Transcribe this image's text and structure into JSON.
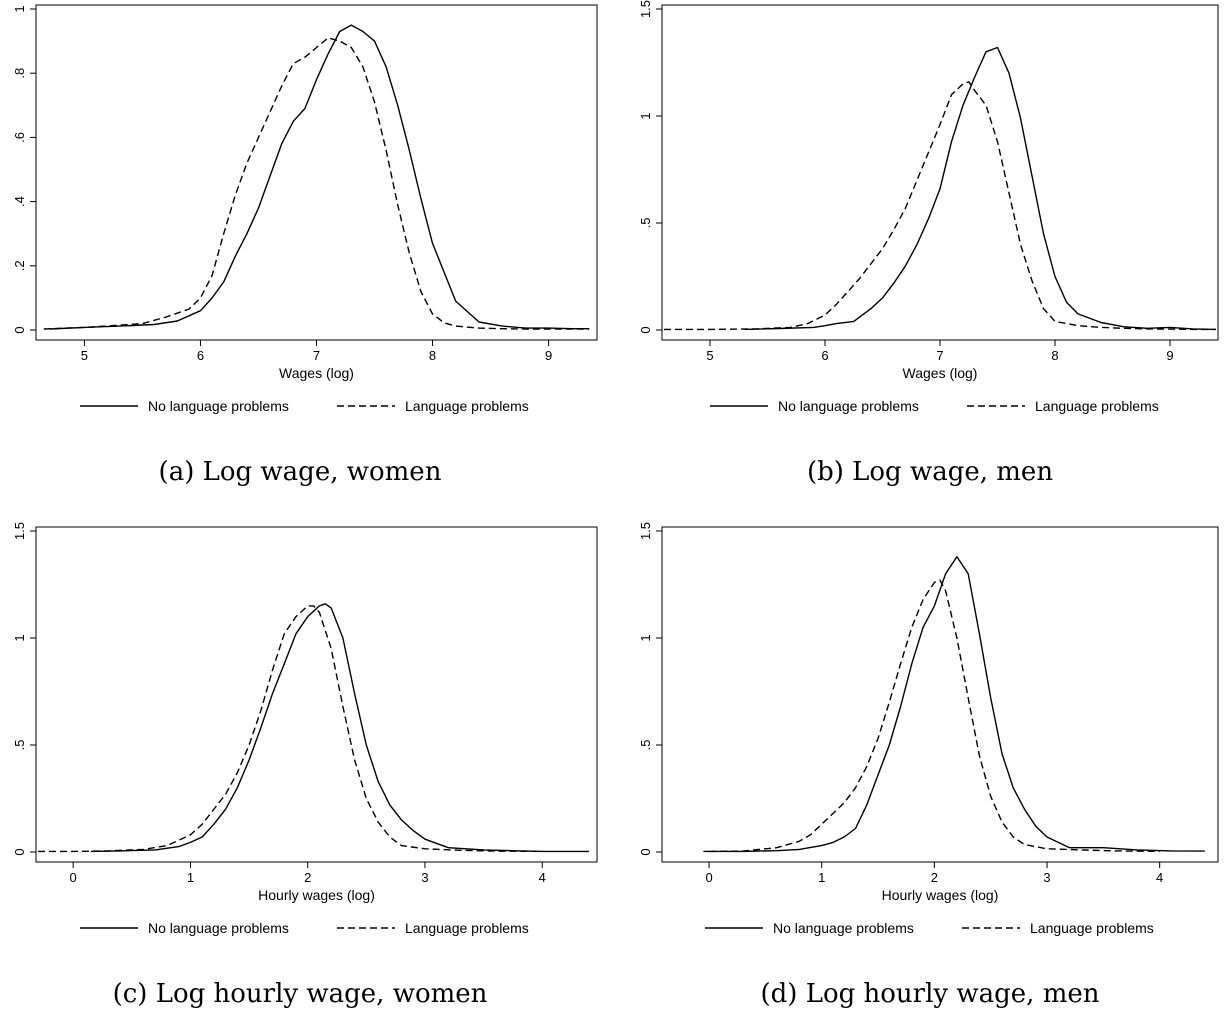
{
  "colors": {
    "line": "#000000",
    "background": "#ffffff"
  },
  "chart_data": [
    {
      "type": "line",
      "caption": "(a) Log wage, women",
      "xlabel": "Wages (log)",
      "ylabel": "",
      "xlim": [
        4.6,
        9.4
      ],
      "ylim": [
        0,
        1.0
      ],
      "xticks": [
        5,
        6,
        7,
        8,
        9
      ],
      "xtick_labels": [
        "5",
        "6",
        "7",
        "8",
        "9"
      ],
      "yticks": [
        0,
        0.2,
        0.4,
        0.6,
        0.8,
        1.0
      ],
      "ytick_labels": [
        "0",
        ".2",
        ".4",
        ".6",
        ".8",
        "1"
      ],
      "legend_position": "bottom",
      "series": [
        {
          "name": "No language problems",
          "style": "solid",
          "x": [
            4.7,
            5.0,
            5.3,
            5.6,
            5.8,
            6.0,
            6.1,
            6.2,
            6.3,
            6.4,
            6.5,
            6.6,
            6.7,
            6.8,
            6.9,
            7.0,
            7.1,
            7.2,
            7.3,
            7.4,
            7.5,
            7.6,
            7.7,
            7.8,
            7.9,
            8.0,
            8.2,
            8.4,
            8.6,
            8.8,
            9.0,
            9.2,
            9.35
          ],
          "y": [
            0.003,
            0.008,
            0.012,
            0.017,
            0.028,
            0.06,
            0.1,
            0.15,
            0.23,
            0.3,
            0.38,
            0.48,
            0.58,
            0.65,
            0.69,
            0.78,
            0.86,
            0.93,
            0.95,
            0.93,
            0.9,
            0.82,
            0.7,
            0.56,
            0.41,
            0.27,
            0.09,
            0.025,
            0.012,
            0.006,
            0.006,
            0.004,
            0.004
          ]
        },
        {
          "name": "Language problems",
          "style": "dashed",
          "x": [
            4.65,
            5.0,
            5.3,
            5.5,
            5.7,
            5.9,
            6.0,
            6.1,
            6.2,
            6.3,
            6.4,
            6.5,
            6.6,
            6.7,
            6.8,
            6.9,
            7.0,
            7.1,
            7.2,
            7.3,
            7.4,
            7.5,
            7.6,
            7.7,
            7.8,
            7.9,
            8.0,
            8.1,
            8.2,
            8.4,
            8.6,
            8.8,
            9.0,
            9.2,
            9.35
          ],
          "y": [
            0.003,
            0.008,
            0.015,
            0.02,
            0.04,
            0.065,
            0.1,
            0.17,
            0.3,
            0.42,
            0.52,
            0.6,
            0.68,
            0.76,
            0.83,
            0.85,
            0.88,
            0.91,
            0.9,
            0.88,
            0.82,
            0.71,
            0.56,
            0.39,
            0.24,
            0.12,
            0.05,
            0.022,
            0.012,
            0.006,
            0.004,
            0.003,
            0.003,
            0.003,
            0.003
          ]
        }
      ]
    },
    {
      "type": "line",
      "caption": "(b) Log wage, men",
      "xlabel": "Wages (log)",
      "ylabel": "",
      "xlim": [
        4.6,
        9.4
      ],
      "ylim": [
        0,
        1.5
      ],
      "xticks": [
        5,
        6,
        7,
        8,
        9
      ],
      "xtick_labels": [
        "5",
        "6",
        "7",
        "8",
        "9"
      ],
      "yticks": [
        0,
        0.5,
        1.0,
        1.5
      ],
      "ytick_labels": [
        "0",
        ".5",
        "1",
        "1.5"
      ],
      "legend_position": "bottom",
      "series": [
        {
          "name": "No language problems",
          "style": "solid",
          "x": [
            5.3,
            5.6,
            5.9,
            6.0,
            6.1,
            6.25,
            6.4,
            6.5,
            6.6,
            6.7,
            6.8,
            6.9,
            7.0,
            7.1,
            7.2,
            7.3,
            7.4,
            7.5,
            7.6,
            7.7,
            7.8,
            7.9,
            8.0,
            8.1,
            8.2,
            8.4,
            8.6,
            8.8,
            9.0,
            9.2,
            9.4
          ],
          "y": [
            0.003,
            0.007,
            0.012,
            0.02,
            0.03,
            0.04,
            0.1,
            0.15,
            0.22,
            0.3,
            0.4,
            0.52,
            0.66,
            0.88,
            1.05,
            1.18,
            1.3,
            1.32,
            1.2,
            0.99,
            0.72,
            0.45,
            0.25,
            0.13,
            0.075,
            0.035,
            0.015,
            0.008,
            0.012,
            0.005,
            0.003
          ]
        },
        {
          "name": "Language problems",
          "style": "dashed",
          "x": [
            4.6,
            5.0,
            5.4,
            5.7,
            5.85,
            6.0,
            6.1,
            6.2,
            6.3,
            6.4,
            6.5,
            6.6,
            6.7,
            6.8,
            6.9,
            7.0,
            7.1,
            7.2,
            7.25,
            7.3,
            7.4,
            7.5,
            7.6,
            7.7,
            7.8,
            7.9,
            8.0,
            8.2,
            8.4,
            8.6,
            8.8,
            9.0,
            9.2,
            9.4
          ],
          "y": [
            0.003,
            0.003,
            0.005,
            0.012,
            0.03,
            0.07,
            0.12,
            0.18,
            0.24,
            0.31,
            0.38,
            0.47,
            0.57,
            0.7,
            0.83,
            0.96,
            1.1,
            1.15,
            1.16,
            1.12,
            1.05,
            0.88,
            0.64,
            0.4,
            0.23,
            0.1,
            0.04,
            0.02,
            0.012,
            0.008,
            0.005,
            0.004,
            0.003,
            0.003
          ]
        }
      ]
    },
    {
      "type": "line",
      "caption": "(c) Log hourly wage, women",
      "xlabel": "Hourly wages (log)",
      "ylabel": "",
      "xlim": [
        -0.3,
        4.45
      ],
      "ylim": [
        0,
        1.5
      ],
      "xticks": [
        0,
        1,
        2,
        3,
        4
      ],
      "xtick_labels": [
        "0",
        "1",
        "2",
        "3",
        "4"
      ],
      "yticks": [
        0,
        0.5,
        1.0,
        1.5
      ],
      "ytick_labels": [
        "0",
        ".5",
        "1",
        "1.5"
      ],
      "legend_position": "bottom",
      "series": [
        {
          "name": "No language problems",
          "style": "solid",
          "x": [
            0.15,
            0.4,
            0.7,
            0.9,
            1.0,
            1.1,
            1.2,
            1.3,
            1.4,
            1.5,
            1.6,
            1.7,
            1.8,
            1.9,
            2.0,
            2.1,
            2.15,
            2.2,
            2.3,
            2.4,
            2.5,
            2.6,
            2.7,
            2.8,
            2.9,
            3.0,
            3.2,
            3.5,
            4.0,
            4.4
          ],
          "y": [
            0.003,
            0.005,
            0.01,
            0.025,
            0.045,
            0.07,
            0.13,
            0.2,
            0.3,
            0.43,
            0.58,
            0.74,
            0.88,
            1.02,
            1.1,
            1.15,
            1.16,
            1.14,
            1.0,
            0.74,
            0.5,
            0.33,
            0.22,
            0.15,
            0.1,
            0.06,
            0.02,
            0.01,
            0.003,
            0.003
          ]
        },
        {
          "name": "Language problems",
          "style": "dashed",
          "x": [
            -0.3,
            0.0,
            0.3,
            0.6,
            0.8,
            1.0,
            1.1,
            1.2,
            1.3,
            1.4,
            1.5,
            1.6,
            1.7,
            1.8,
            1.9,
            2.0,
            2.05,
            2.1,
            2.2,
            2.3,
            2.4,
            2.5,
            2.6,
            2.7,
            2.8,
            3.0,
            3.3,
            3.6,
            4.0
          ],
          "y": [
            0.003,
            0.003,
            0.005,
            0.012,
            0.03,
            0.08,
            0.13,
            0.2,
            0.27,
            0.37,
            0.5,
            0.66,
            0.85,
            1.02,
            1.1,
            1.15,
            1.15,
            1.12,
            0.95,
            0.68,
            0.43,
            0.25,
            0.14,
            0.07,
            0.03,
            0.015,
            0.008,
            0.004,
            0.003
          ]
        }
      ]
    },
    {
      "type": "line",
      "caption": "(d) Log hourly wage, men",
      "xlabel": "Hourly wages (log)",
      "ylabel": "",
      "xlim": [
        -0.4,
        4.5
      ],
      "ylim": [
        0,
        1.5
      ],
      "xticks": [
        0,
        1,
        2,
        3,
        4
      ],
      "xtick_labels": [
        "0",
        "1",
        "2",
        "3",
        "4"
      ],
      "yticks": [
        0,
        0.5,
        1.0,
        1.5
      ],
      "ytick_labels": [
        "0",
        ".5",
        "1",
        "1.5"
      ],
      "legend_position": "bottom",
      "series": [
        {
          "name": "No language problems",
          "style": "solid",
          "x": [
            -0.05,
            0.3,
            0.6,
            0.8,
            1.0,
            1.1,
            1.2,
            1.3,
            1.4,
            1.5,
            1.6,
            1.7,
            1.8,
            1.9,
            2.0,
            2.1,
            2.2,
            2.3,
            2.4,
            2.5,
            2.6,
            2.7,
            2.8,
            2.9,
            3.0,
            3.2,
            3.5,
            3.8,
            4.1,
            4.4
          ],
          "y": [
            0.003,
            0.003,
            0.006,
            0.012,
            0.03,
            0.045,
            0.07,
            0.11,
            0.22,
            0.36,
            0.5,
            0.68,
            0.88,
            1.05,
            1.15,
            1.3,
            1.38,
            1.3,
            1.02,
            0.72,
            0.46,
            0.3,
            0.2,
            0.12,
            0.07,
            0.02,
            0.02,
            0.01,
            0.005,
            0.004
          ]
        },
        {
          "name": "Language problems",
          "style": "dashed",
          "x": [
            0.0,
            0.3,
            0.6,
            0.8,
            0.9,
            1.0,
            1.1,
            1.2,
            1.3,
            1.4,
            1.5,
            1.6,
            1.7,
            1.8,
            1.9,
            2.0,
            2.05,
            2.1,
            2.2,
            2.3,
            2.4,
            2.5,
            2.6,
            2.7,
            2.8,
            3.0,
            3.3,
            3.6,
            4.0
          ],
          "y": [
            0.003,
            0.004,
            0.02,
            0.05,
            0.08,
            0.13,
            0.18,
            0.23,
            0.3,
            0.4,
            0.53,
            0.7,
            0.88,
            1.05,
            1.18,
            1.26,
            1.27,
            1.22,
            1.0,
            0.72,
            0.45,
            0.26,
            0.14,
            0.07,
            0.035,
            0.015,
            0.01,
            0.005,
            0.003
          ]
        }
      ]
    }
  ]
}
